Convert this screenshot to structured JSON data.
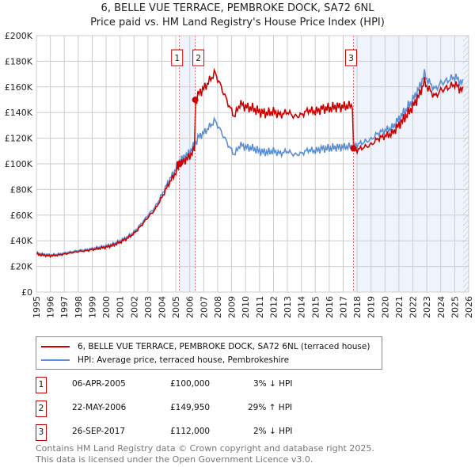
{
  "title": "6, BELLE VUE TERRACE, PEMBROKE DOCK, SA72 6NL",
  "subtitle": "Price paid vs. HM Land Registry's House Price Index (HPI)",
  "colors": {
    "property": "#cc0000",
    "hpi": "#5b8fd4",
    "shade": "#eef3fc"
  },
  "chart_data": {
    "type": "line",
    "ylim": [
      0,
      200000
    ],
    "xlim": [
      1995,
      2026
    ],
    "yticks": [
      "£0",
      "£20K",
      "£40K",
      "£60K",
      "£80K",
      "£100K",
      "£120K",
      "£140K",
      "£160K",
      "£180K",
      "£200K"
    ],
    "xticks": [
      "1995",
      "1996",
      "1997",
      "1998",
      "1999",
      "2000",
      "2001",
      "2002",
      "2003",
      "2004",
      "2005",
      "2006",
      "2007",
      "2008",
      "2009",
      "2010",
      "2011",
      "2012",
      "2013",
      "2014",
      "2015",
      "2016",
      "2017",
      "2018",
      "2019",
      "2020",
      "2021",
      "2022",
      "2023",
      "2024",
      "2025",
      "2026"
    ],
    "hpi": [
      [
        1995,
        30500
      ],
      [
        1995.5,
        29500
      ],
      [
        1996,
        29000
      ],
      [
        1996.5,
        29500
      ],
      [
        1997,
        30500
      ],
      [
        1997.5,
        31500
      ],
      [
        1998,
        32500
      ],
      [
        1998.5,
        33000
      ],
      [
        1999,
        34000
      ],
      [
        1999.5,
        35000
      ],
      [
        2000,
        36000
      ],
      [
        2000.5,
        37500
      ],
      [
        2001,
        40000
      ],
      [
        2001.5,
        43000
      ],
      [
        2002,
        47000
      ],
      [
        2002.5,
        53000
      ],
      [
        2003,
        60000
      ],
      [
        2003.5,
        66000
      ],
      [
        2004,
        76000
      ],
      [
        2004.5,
        87000
      ],
      [
        2005,
        96000
      ],
      [
        2005.3,
        103000
      ],
      [
        2005.7,
        106000
      ],
      [
        2006,
        109000
      ],
      [
        2006.4,
        116000
      ],
      [
        2006.7,
        122000
      ],
      [
        2007,
        124000
      ],
      [
        2007.5,
        130000
      ],
      [
        2007.8,
        134000
      ],
      [
        2008.3,
        124000
      ],
      [
        2008.8,
        114000
      ],
      [
        2009.2,
        107000
      ],
      [
        2009.6,
        115000
      ],
      [
        2010,
        113000
      ],
      [
        2010.5,
        112000
      ],
      [
        2011,
        110000
      ],
      [
        2011.5,
        109000
      ],
      [
        2012,
        110000
      ],
      [
        2012.5,
        108000
      ],
      [
        2013,
        110000
      ],
      [
        2013.5,
        107000
      ],
      [
        2014,
        108000
      ],
      [
        2014.5,
        111000
      ],
      [
        2015,
        110000
      ],
      [
        2015.5,
        112000
      ],
      [
        2016,
        112000
      ],
      [
        2016.5,
        113000
      ],
      [
        2017,
        113000
      ],
      [
        2017.74,
        114000
      ],
      [
        2018,
        115000
      ],
      [
        2018.5,
        117000
      ],
      [
        2019,
        119000
      ],
      [
        2019.5,
        124000
      ],
      [
        2020,
        126000
      ],
      [
        2020.5,
        128000
      ],
      [
        2021,
        135000
      ],
      [
        2021.5,
        142000
      ],
      [
        2022,
        150000
      ],
      [
        2022.5,
        160000
      ],
      [
        2022.8,
        170000
      ],
      [
        2023.2,
        163000
      ],
      [
        2023.6,
        158000
      ],
      [
        2024,
        163000
      ],
      [
        2024.5,
        165000
      ],
      [
        2025,
        168000
      ],
      [
        2025.6,
        162000
      ]
    ],
    "sales": [
      {
        "id": "1",
        "year": 2005.26,
        "price": 100000,
        "date": "06-APR-2005",
        "price_label": "£100,000",
        "hpi_diff": "3% ↓ HPI"
      },
      {
        "id": "2",
        "year": 2006.39,
        "price": 149950,
        "date": "22-MAY-2006",
        "price_label": "£149,950",
        "hpi_diff": "29% ↑ HPI"
      },
      {
        "id": "3",
        "year": 2017.74,
        "price": 112000,
        "date": "26-SEP-2017",
        "price_label": "£112,000",
        "hpi_diff": "2% ↓ HPI"
      }
    ],
    "hatch_from": 2025.6
  },
  "legend": {
    "property": "6, BELLE VUE TERRACE, PEMBROKE DOCK, SA72 6NL (terraced house)",
    "hpi": "HPI: Average price, terraced house, Pembrokeshire"
  },
  "footer": {
    "line1": "Contains HM Land Registry data © Crown copyright and database right 2025.",
    "line2": "This data is licensed under the Open Government Licence v3.0."
  }
}
